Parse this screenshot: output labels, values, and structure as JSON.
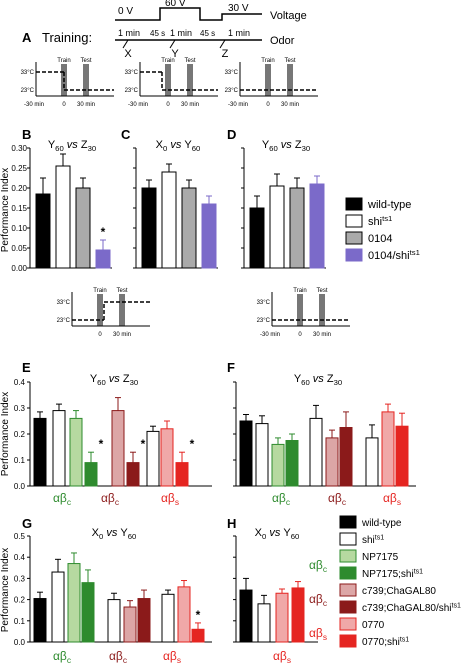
{
  "figure": {
    "panel_letters": [
      "A",
      "B",
      "C",
      "D",
      "E",
      "F",
      "G",
      "H"
    ],
    "ylabel": "Performance Index",
    "training": {
      "title": "Training:",
      "voltage_label": "Voltage",
      "odor_label": "Odor",
      "voltages": [
        "0 V",
        "60 V",
        "30 V"
      ],
      "durations": [
        "1 min",
        "45 s",
        "1 min",
        "45 s",
        "1 min"
      ],
      "odors": [
        "X",
        "Y",
        "Z"
      ]
    },
    "temp_protocol": {
      "temps": [
        "33°C",
        "23°C"
      ],
      "events": [
        "Train",
        "Test"
      ],
      "times": [
        "-30 min",
        "0",
        "30 min"
      ]
    }
  },
  "chart_data": [
    {
      "panel": "B",
      "type": "bar",
      "title_parts": [
        "Y",
        "60",
        " vs ",
        "Z",
        "30"
      ],
      "ylim": [
        0,
        0.3
      ],
      "yticks": [
        "0.00",
        "0.05",
        "0.10",
        "0.15",
        "0.20",
        "0.25",
        "0.30"
      ],
      "series": [
        {
          "name": "wild-type",
          "values": [
            0.185
          ],
          "error": [
            0.04
          ]
        },
        {
          "name": "shi ts1",
          "values": [
            0.255
          ],
          "error": [
            0.03
          ]
        },
        {
          "name": "0104",
          "values": [
            0.2
          ],
          "error": [
            0.025
          ]
        },
        {
          "name": "0104/shi ts1",
          "values": [
            0.045
          ],
          "error": [
            0.025
          ],
          "annotation": "*"
        }
      ]
    },
    {
      "panel": "C",
      "type": "bar",
      "title_parts": [
        "X",
        "0",
        " vs ",
        "Y",
        "60"
      ],
      "ylim": [
        0,
        0.3
      ],
      "yticks": [
        "0.00",
        "0.05",
        "0.10",
        "0.15",
        "0.20",
        "0.25",
        "0.30"
      ],
      "series": [
        {
          "name": "wild-type",
          "values": [
            0.2
          ],
          "error": [
            0.02
          ]
        },
        {
          "name": "shi ts1",
          "values": [
            0.24
          ],
          "error": [
            0.02
          ]
        },
        {
          "name": "0104",
          "values": [
            0.2
          ],
          "error": [
            0.02
          ]
        },
        {
          "name": "0104/shi ts1",
          "values": [
            0.16
          ],
          "error": [
            0.02
          ]
        }
      ]
    },
    {
      "panel": "D",
      "type": "bar",
      "title_parts": [
        "Y",
        "60",
        " vs ",
        "Z",
        "30"
      ],
      "ylim": [
        0,
        0.3
      ],
      "yticks": [
        "0.00",
        "0.05",
        "0.10",
        "0.15",
        "0.20",
        "0.25",
        "0.30"
      ],
      "series": [
        {
          "name": "wild-type",
          "values": [
            0.15
          ],
          "error": [
            0.03
          ]
        },
        {
          "name": "shi ts1",
          "values": [
            0.205
          ],
          "error": [
            0.03
          ]
        },
        {
          "name": "0104",
          "values": [
            0.2
          ],
          "error": [
            0.025
          ]
        },
        {
          "name": "0104/shi ts1",
          "values": [
            0.21
          ],
          "error": [
            0.02
          ]
        }
      ]
    },
    {
      "panel": "E",
      "type": "bar",
      "title_parts": [
        "Y",
        "60",
        " vs ",
        "Z",
        "30"
      ],
      "ylim": [
        0,
        0.4
      ],
      "yticks": [
        "0.0",
        "0.1",
        "0.2",
        "0.3",
        "0.4"
      ],
      "group_labels": [
        "αβc",
        "αβc",
        "αβs"
      ],
      "series": [
        {
          "name": "wild-type",
          "values": [
            0.26
          ],
          "error": [
            0.025
          ]
        },
        {
          "name": "shi ts1",
          "values": [
            0.29
          ],
          "error": [
            0.025
          ]
        },
        {
          "name": "NP7175",
          "values": [
            0.26
          ],
          "error": [
            0.03
          ]
        },
        {
          "name": "NP7175;shi ts1",
          "values": [
            0.09
          ],
          "error": [
            0.04
          ],
          "annotation": "*"
        },
        {
          "name": "c739;ChaGAL80",
          "values": [
            0.29
          ],
          "error": [
            0.05
          ]
        },
        {
          "name": "c739;ChaGAL80/shi ts1",
          "values": [
            0.09
          ],
          "error": [
            0.04
          ],
          "annotation": "*"
        },
        {
          "name": "0770",
          "values": [
            0.22
          ],
          "error": [
            0.03
          ]
        },
        {
          "name": "0770;shi ts1",
          "values": [
            0.09
          ],
          "error": [
            0.04
          ],
          "annotation": "*"
        }
      ],
      "extra_bars": [
        {
          "name": "shi ts1 (ab s)",
          "values": [
            0.21
          ],
          "error": [
            0.02
          ]
        }
      ]
    },
    {
      "panel": "F",
      "type": "bar",
      "title_parts": [
        "Y",
        "60",
        " vs ",
        "Z",
        "30"
      ],
      "ylim": [
        0,
        0.4
      ],
      "yticks": [
        "0.0",
        "0.1",
        "0.2",
        "0.3",
        "0.4"
      ],
      "group_labels": [
        "αβc",
        "αβc",
        "αβs"
      ],
      "series": [
        {
          "name": "wild-type",
          "values": [
            0.25
          ],
          "error": [
            0.025
          ]
        },
        {
          "name": "shi ts1",
          "values": [
            0.24
          ],
          "error": [
            0.03
          ]
        },
        {
          "name": "NP7175",
          "values": [
            0.16
          ],
          "error": [
            0.025
          ]
        },
        {
          "name": "NP7175;shi ts1",
          "values": [
            0.175
          ],
          "error": [
            0.025
          ]
        },
        {
          "name": "shi ts1 (ab c)",
          "values": [
            0.26
          ],
          "error": [
            0.05
          ]
        },
        {
          "name": "c739;ChaGAL80",
          "values": [
            0.185
          ],
          "error": [
            0.03
          ]
        },
        {
          "name": "c739;ChaGAL80/shi ts1",
          "values": [
            0.225
          ],
          "error": [
            0.06
          ]
        },
        {
          "name": "shi ts1 (ab s)",
          "values": [
            0.185
          ],
          "error": [
            0.05
          ]
        },
        {
          "name": "0770",
          "values": [
            0.285
          ],
          "error": [
            0.03
          ]
        },
        {
          "name": "0770;shi ts1",
          "values": [
            0.23
          ],
          "error": [
            0.05
          ]
        }
      ]
    },
    {
      "panel": "G",
      "type": "bar",
      "title_parts": [
        "X",
        "0",
        " vs ",
        "Y",
        "60"
      ],
      "ylim": [
        0,
        0.5
      ],
      "yticks": [
        "0.0",
        "0.1",
        "0.2",
        "0.3",
        "0.4",
        "0.5"
      ],
      "group_labels": [
        "αβc",
        "αβc",
        "αβs"
      ],
      "series": [
        {
          "name": "wild-type",
          "values": [
            0.205
          ],
          "error": [
            0.03
          ]
        },
        {
          "name": "shi ts1",
          "values": [
            0.33
          ],
          "error": [
            0.06
          ]
        },
        {
          "name": "NP7175",
          "values": [
            0.37
          ],
          "error": [
            0.05
          ]
        },
        {
          "name": "NP7175;shi ts1",
          "values": [
            0.28
          ],
          "error": [
            0.06
          ]
        },
        {
          "name": "shi ts1 (ab c)",
          "values": [
            0.2
          ],
          "error": [
            0.03
          ]
        },
        {
          "name": "c739;ChaGAL80",
          "values": [
            0.165
          ],
          "error": [
            0.03
          ]
        },
        {
          "name": "c739;ChaGAL80/shi ts1",
          "values": [
            0.205
          ],
          "error": [
            0.04
          ]
        },
        {
          "name": "shi ts1 (ab s)",
          "values": [
            0.225
          ],
          "error": [
            0.02
          ]
        },
        {
          "name": "0770",
          "values": [
            0.26
          ],
          "error": [
            0.03
          ]
        },
        {
          "name": "0770;shi ts1",
          "values": [
            0.06
          ],
          "error": [
            0.03
          ],
          "annotation": "*"
        }
      ]
    },
    {
      "panel": "H",
      "type": "bar",
      "title_parts": [
        "X",
        "0",
        " vs ",
        "Y",
        "60"
      ],
      "ylim": [
        0,
        0.5
      ],
      "yticks": [
        "0.0",
        "0.1",
        "0.2",
        "0.3",
        "0.4",
        "0.5"
      ],
      "group_labels": [
        "αβs"
      ],
      "series": [
        {
          "name": "wild-type",
          "values": [
            0.245
          ],
          "error": [
            0.055
          ]
        },
        {
          "name": "shi ts1",
          "values": [
            0.18
          ],
          "error": [
            0.04
          ]
        },
        {
          "name": "0770",
          "values": [
            0.23
          ],
          "error": [
            0.02
          ]
        },
        {
          "name": "0770;shi ts1",
          "values": [
            0.255
          ],
          "error": [
            0.03
          ]
        }
      ]
    }
  ],
  "legend_top": [
    {
      "label": "wild-type",
      "color": "#000000"
    },
    {
      "label": "shi",
      "sup": "ts1",
      "color": "#ffffff"
    },
    {
      "label": "0104",
      "color": "#aaaaaa"
    },
    {
      "label": "0104/shi",
      "sup": "ts1",
      "color": "#7b6ac9"
    }
  ],
  "legend_bottom": {
    "entries": [
      {
        "label": "wild-type",
        "color": "#000000"
      },
      {
        "label": "shi",
        "sup": "ts1",
        "color": "#ffffff"
      },
      {
        "label": "NP7175",
        "color": "#b6d9a0"
      },
      {
        "label": "NP7175;shi",
        "sup": "ts1",
        "color": "#2e8b2e"
      },
      {
        "label": "c739;ChaGAL80",
        "color": "#dca6a6"
      },
      {
        "label": "c739;ChaGAL80/shi",
        "sup": "ts1",
        "color": "#8b1a1a"
      },
      {
        "label": "0770",
        "color": "#f0a8a8"
      },
      {
        "label": "0770;shi",
        "sup": "ts1",
        "color": "#e52521"
      }
    ],
    "group_labels": [
      {
        "text": "αβ",
        "sub": "c",
        "color": "#2e8b2e"
      },
      {
        "text": "αβ",
        "sub": "c",
        "color": "#8b1a1a"
      },
      {
        "text": "αβ",
        "sub": "s",
        "color": "#e52521"
      }
    ]
  },
  "colors": {
    "black": "#000000",
    "white": "#ffffff",
    "gray": "#aaaaaa",
    "purple": "#7b6ac9",
    "lightgreen": "#b6d9a0",
    "green": "#2e8b2e",
    "pink": "#dca6a6",
    "darkred": "#8b1a1a",
    "lightred": "#f0a8a8",
    "red": "#e52521",
    "protocolbar": "#777777"
  }
}
